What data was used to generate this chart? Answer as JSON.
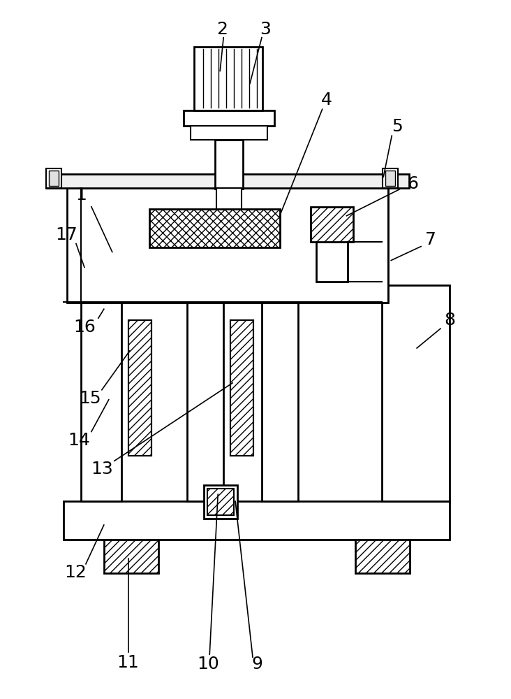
{
  "bg_color": "#ffffff",
  "line_color": "#000000",
  "label_fontsize": 18,
  "fig_w": 7.32,
  "fig_h": 10.0,
  "dpi": 100
}
